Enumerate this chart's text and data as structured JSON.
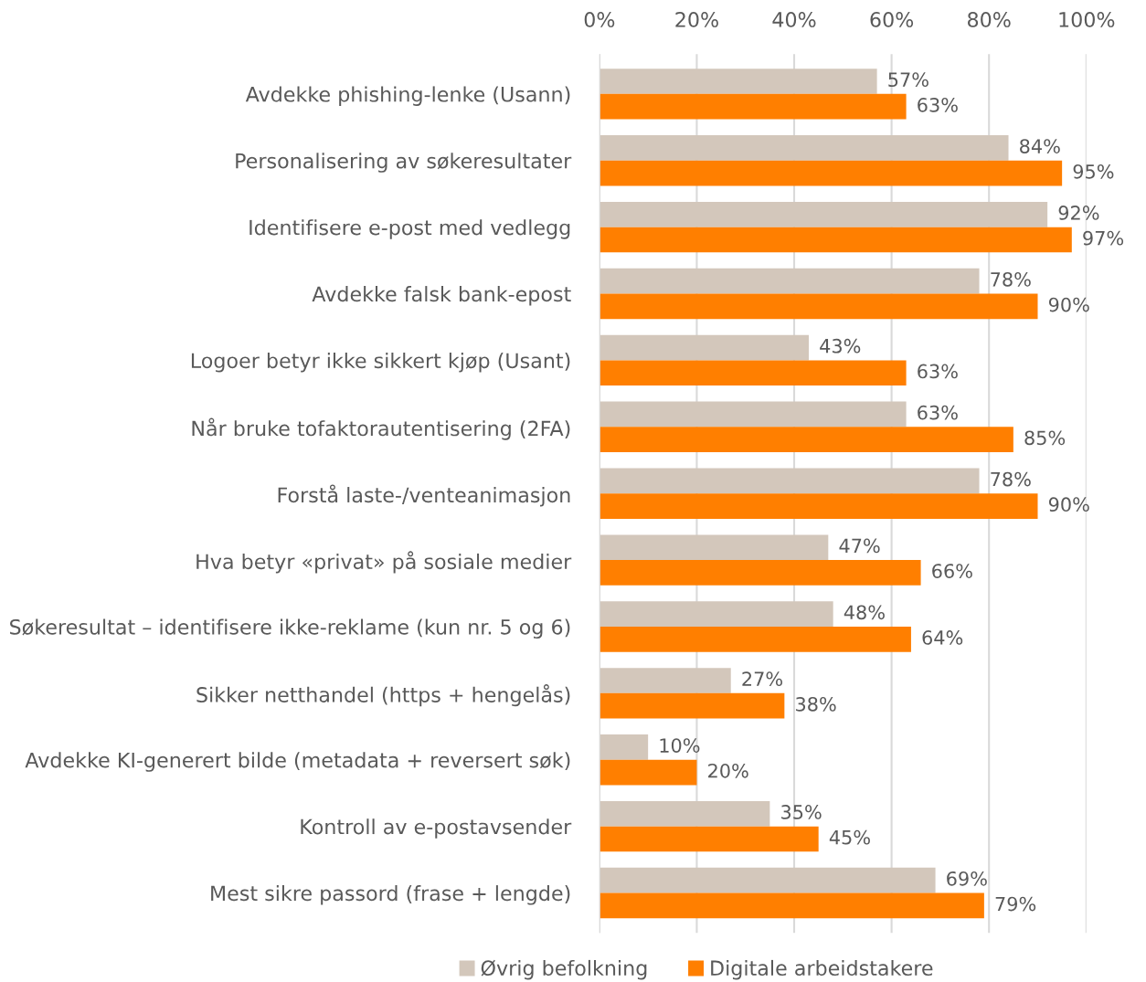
{
  "chart_data": {
    "type": "bar",
    "orientation": "horizontal",
    "categories": [
      "Avdekke phishing-lenke (Usann)",
      "Personalisering av søkeresultater",
      "Identifisere e-post med vedlegg",
      "Avdekke falsk bank-epost",
      "Logoer betyr ikke sikkert kjøp (Usant)",
      "Når bruke tofaktorautentisering (2FA)",
      "Forstå laste-/venteanimasjon",
      "Hva betyr «privat» på sosiale medier",
      "Søkeresultat – identifisere ikke-reklame (kun nr. 5 og 6)",
      "Sikker netthandel (https + hengelås)",
      "Avdekke KI-generert bilde (metadata + reversert søk)",
      "Kontroll av e-postavsender",
      "Mest sikre passord (frase + lengde)"
    ],
    "series": [
      {
        "name": "Øvrig befolkning",
        "color": "#d3c7bb",
        "values": [
          57,
          84,
          92,
          78,
          43,
          63,
          78,
          47,
          48,
          27,
          10,
          35,
          69
        ],
        "value_labels": [
          "57%",
          "84%",
          "92%",
          "78%",
          "43%",
          "63%",
          "78%",
          "47%",
          "48%",
          "27%",
          "10%",
          "35%",
          "69%"
        ]
      },
      {
        "name": "Digitale arbeidstakere",
        "color": "#ff7f00",
        "values": [
          63,
          95,
          97,
          90,
          63,
          85,
          90,
          66,
          64,
          38,
          20,
          45,
          79
        ],
        "value_labels": [
          "63%",
          "95%",
          "97%",
          "90%",
          "63%",
          "85%",
          "90%",
          "66%",
          "64%",
          "38%",
          "20%",
          "45%",
          "79%"
        ]
      }
    ],
    "xlim": [
      0,
      100
    ],
    "xticks": [
      {
        "value": 0,
        "label": "0%"
      },
      {
        "value": 20,
        "label": "20%"
      },
      {
        "value": 40,
        "label": "40%"
      },
      {
        "value": 60,
        "label": "60%"
      },
      {
        "value": 80,
        "label": "80%"
      },
      {
        "value": 100,
        "label": "100%"
      }
    ],
    "grid": "x",
    "legend": "bottom"
  }
}
